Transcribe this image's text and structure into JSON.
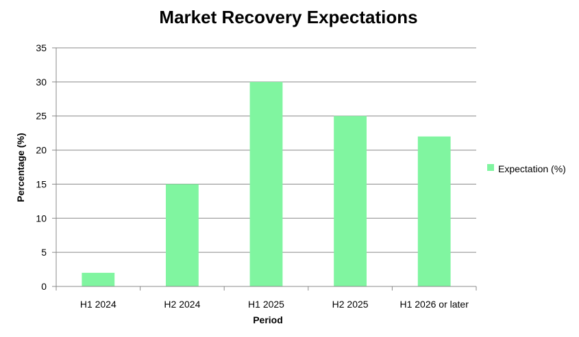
{
  "chart_data": {
    "type": "bar",
    "title": "Market Recovery Expectations",
    "xlabel": "Period",
    "ylabel": "Percentage (%)",
    "categories": [
      "H1 2024",
      "H2 2024",
      "H1 2025",
      "H2 2025",
      "H1 2026 or later"
    ],
    "series": [
      {
        "name": "Expectation (%)",
        "values": [
          2,
          15,
          30,
          25,
          22
        ],
        "color": "#80f5a0"
      }
    ],
    "ylim": [
      0,
      35
    ],
    "yticks": [
      0,
      5,
      10,
      15,
      20,
      25,
      30,
      35
    ],
    "grid": true,
    "legend_position": "right"
  }
}
